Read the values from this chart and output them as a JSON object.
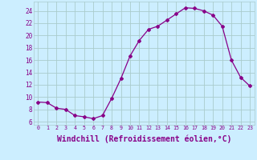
{
  "x": [
    0,
    1,
    2,
    3,
    4,
    5,
    6,
    7,
    8,
    9,
    10,
    11,
    12,
    13,
    14,
    15,
    16,
    17,
    18,
    19,
    20,
    21,
    22,
    23
  ],
  "y": [
    9.2,
    9.1,
    8.2,
    8.0,
    7.0,
    6.8,
    6.5,
    7.0,
    9.8,
    13.0,
    16.7,
    19.2,
    21.0,
    21.5,
    22.5,
    23.5,
    24.5,
    24.4,
    24.0,
    23.3,
    21.5,
    16.0,
    13.2,
    11.8
  ],
  "line_color": "#880088",
  "marker": "D",
  "marker_size": 2.0,
  "xlabel": "Windchill (Refroidissement éolien,°C)",
  "xlabel_fontsize": 7.0,
  "bg_color": "#cceeff",
  "grid_color": "#aacccc",
  "tick_label_color": "#880088",
  "axis_label_color": "#880088",
  "xlim": [
    -0.5,
    23.5
  ],
  "ylim": [
    5.5,
    25.5
  ],
  "yticks": [
    6,
    8,
    10,
    12,
    14,
    16,
    18,
    20,
    22,
    24
  ],
  "xticks": [
    0,
    1,
    2,
    3,
    4,
    5,
    6,
    7,
    8,
    9,
    10,
    11,
    12,
    13,
    14,
    15,
    16,
    17,
    18,
    19,
    20,
    21,
    22,
    23
  ]
}
